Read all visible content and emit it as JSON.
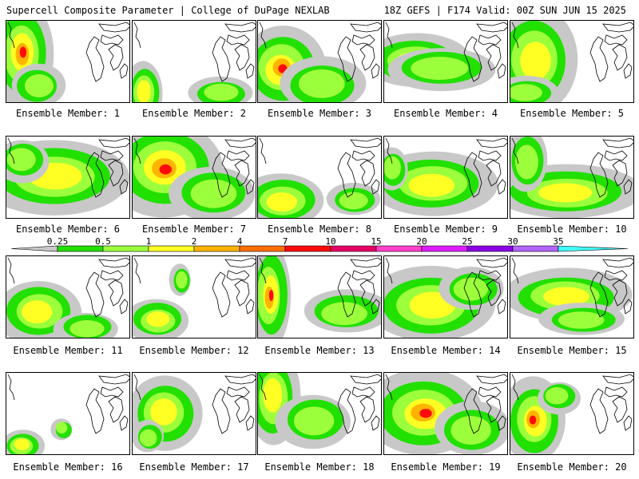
{
  "header": {
    "left_title": "Supercell Composite Parameter | College of DuPage NEXLAB",
    "right_title": "18Z GEFS | F174 Valid: 00Z SUN JUN 15 2025"
  },
  "legend": {
    "ticks": [
      "0.25",
      "0.5",
      "1",
      "2",
      "4",
      "7",
      "10",
      "15",
      "20",
      "25",
      "30",
      "35"
    ],
    "colors": [
      "#c8c8c8",
      "#22e000",
      "#9cff3c",
      "#ffff24",
      "#ffb400",
      "#ff6e00",
      "#ff0a0a",
      "#e60064",
      "#ff40c8",
      "#e01cff",
      "#8c00e6",
      "#b464ff",
      "#40ffff"
    ]
  },
  "panels": [
    {
      "label": "Ensemble Member: 1"
    },
    {
      "label": "Ensemble Member: 2"
    },
    {
      "label": "Ensemble Member: 3"
    },
    {
      "label": "Ensemble Member: 4"
    },
    {
      "label": "Ensemble Member: 5"
    },
    {
      "label": "Ensemble Member: 6"
    },
    {
      "label": "Ensemble Member: 7"
    },
    {
      "label": "Ensemble Member: 8"
    },
    {
      "label": "Ensemble Member: 9"
    },
    {
      "label": "Ensemble Member: 10"
    },
    {
      "label": "Ensemble Member: 11"
    },
    {
      "label": "Ensemble Member: 12"
    },
    {
      "label": "Ensemble Member: 13"
    },
    {
      "label": "Ensemble Member: 14"
    },
    {
      "label": "Ensemble Member: 15"
    },
    {
      "label": "Ensemble Member: 16"
    },
    {
      "label": "Ensemble Member: 17"
    },
    {
      "label": "Ensemble Member: 18"
    },
    {
      "label": "Ensemble Member: 19"
    },
    {
      "label": "Ensemble Member: 20"
    }
  ]
}
